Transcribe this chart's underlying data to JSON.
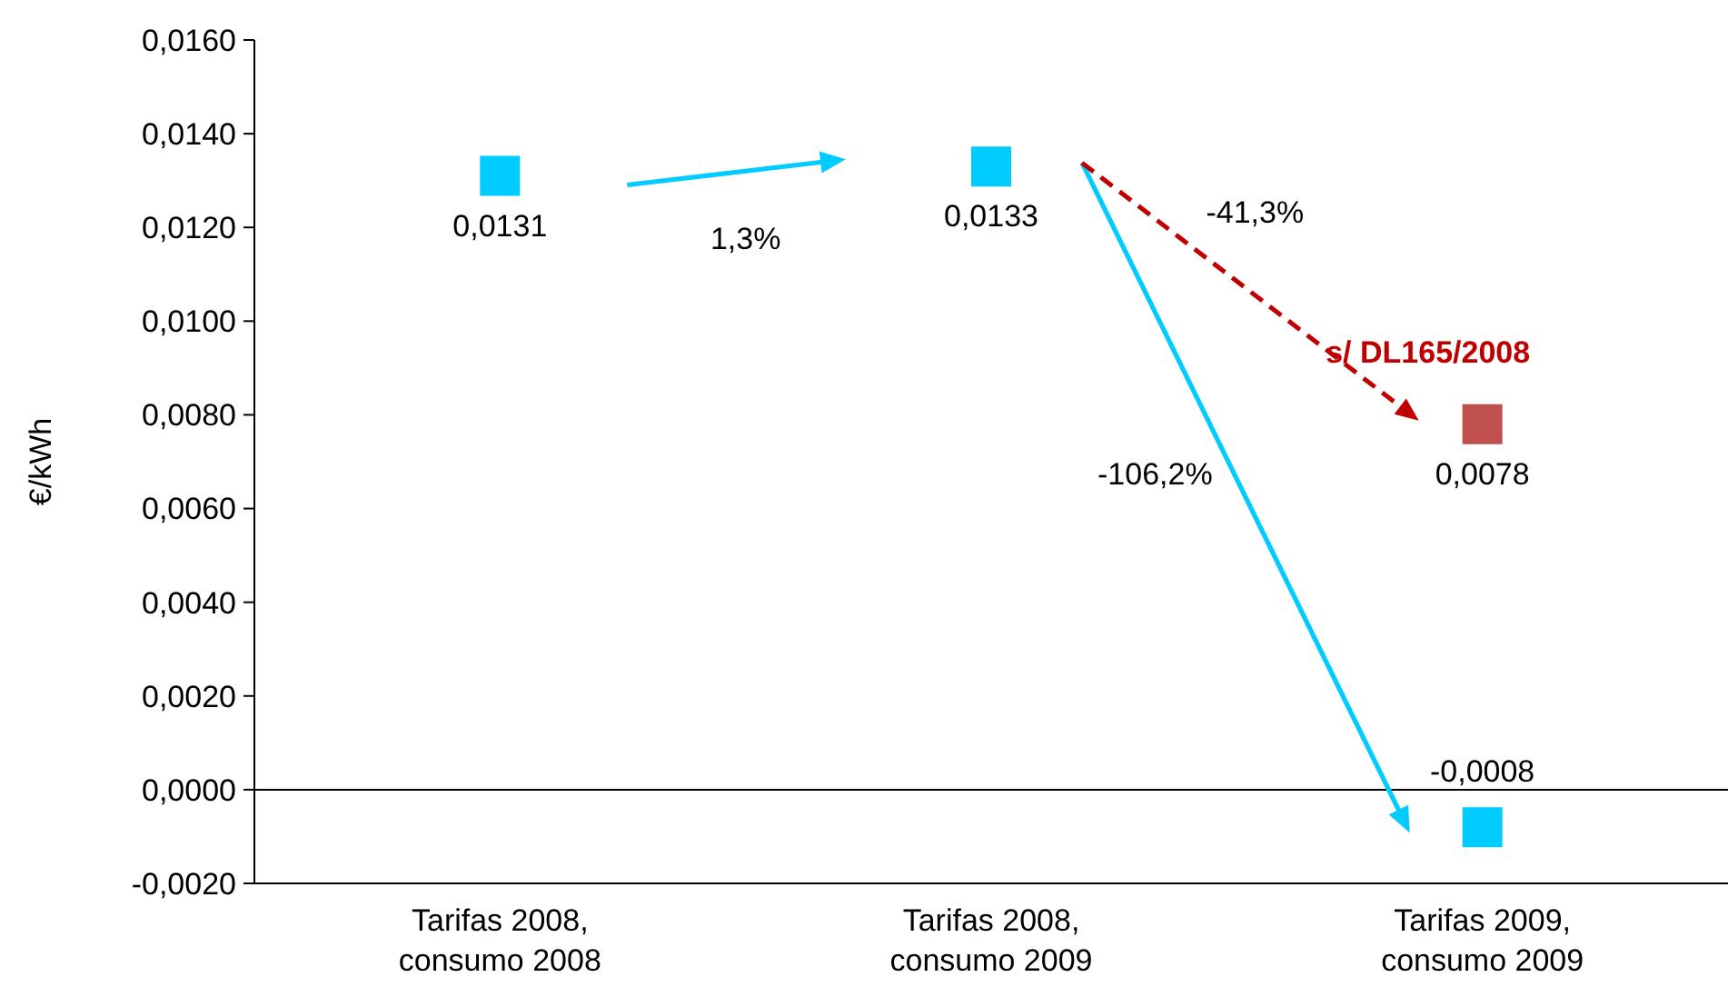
{
  "chart_data": {
    "type": "scatter",
    "ylabel": "€/kWh",
    "categories": [
      "Tarifas 2008, consumo 2008",
      "Tarifas 2008, consumo 2009",
      "Tarifas 2009, consumo 2009"
    ],
    "series": [
      {
        "color": "#00ccff",
        "marker": "square",
        "values": [
          0.0131,
          0.0133,
          -0.0008
        ],
        "value_labels": [
          "0,0131",
          "0,0133",
          "-0,0008"
        ]
      },
      {
        "color": "#c0504d",
        "marker": "square",
        "values": [
          null,
          null,
          0.0078
        ],
        "value_labels": [
          null,
          null,
          "0,0078"
        ]
      }
    ],
    "ylim": [
      -0.002,
      0.016
    ],
    "yticks": [
      {
        "value": -0.002,
        "label": "-0,0020"
      },
      {
        "value": 0,
        "label": "0,0000"
      },
      {
        "value": 0.002,
        "label": "0,0020"
      },
      {
        "value": 0.004,
        "label": "0,0040"
      },
      {
        "value": 0.006,
        "label": "0,0060"
      },
      {
        "value": 0.008,
        "label": "0,0080"
      },
      {
        "value": 0.01,
        "label": "0,0100"
      },
      {
        "value": 0.012,
        "label": "0,0120"
      },
      {
        "value": 0.014,
        "label": "0,0140"
      },
      {
        "value": 0.016,
        "label": "0,0160"
      }
    ],
    "grid": false,
    "ref_lines": [
      {
        "axis": "y",
        "value": 0
      }
    ],
    "annotations": [
      "1,3%",
      "-41,3%",
      "-106,2%",
      "s/ DL165/2008"
    ]
  }
}
